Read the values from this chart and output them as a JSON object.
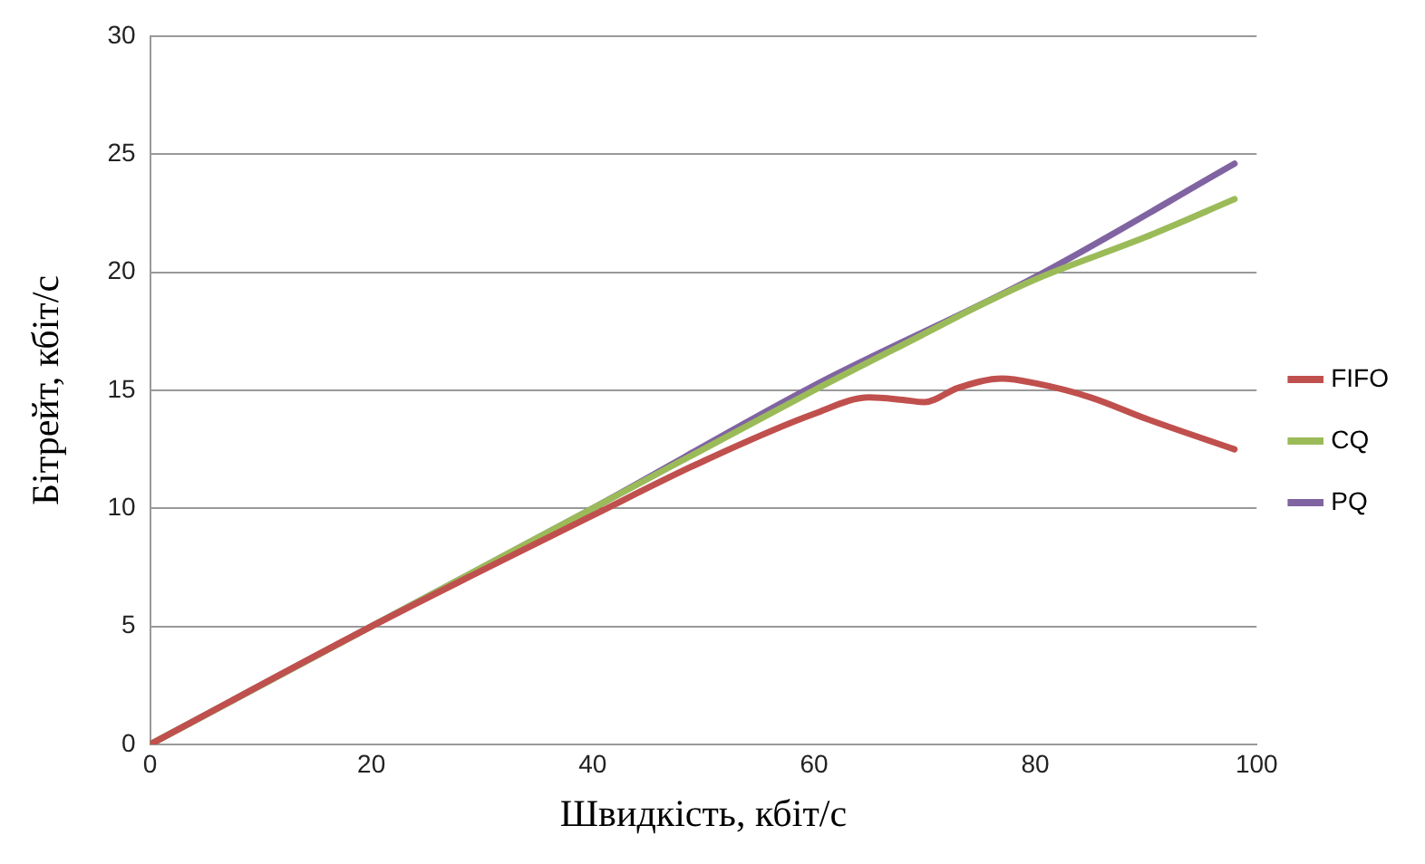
{
  "chart_data": {
    "type": "line",
    "xlabel": "Швидкість, кбіт/с",
    "ylabel": "Бітрейт, кбіт/с",
    "xlim": [
      0,
      100
    ],
    "xticks": [
      0,
      20,
      40,
      60,
      80,
      100
    ],
    "ylim": [
      0,
      30
    ],
    "yticks": [
      0,
      5,
      10,
      15,
      20,
      25,
      30
    ],
    "grid": "y",
    "legend": "right",
    "marker": "none",
    "line_style": "solid",
    "series": [
      {
        "name": "FIFO",
        "color": "#c0504d",
        "x": [
          0,
          20,
          40,
          50,
          60,
          65,
          68,
          70,
          73,
          77,
          80,
          85,
          90,
          98
        ],
        "values": [
          0,
          5,
          9.7,
          12,
          14,
          14.7,
          14.6,
          14.5,
          15.1,
          15.5,
          15.3,
          14.7,
          13.8,
          12.5
        ]
      },
      {
        "name": "CQ",
        "color": "#9bbb59",
        "x": [
          0,
          20,
          40,
          60,
          70,
          75,
          80,
          90,
          98
        ],
        "values": [
          0,
          5,
          10,
          15,
          17.4,
          18.6,
          19.7,
          21.5,
          23.1
        ]
      },
      {
        "name": "PQ",
        "color": "#8064a2",
        "x": [
          0,
          20,
          40,
          60,
          80,
          98
        ],
        "values": [
          0,
          5,
          10,
          15.2,
          19.8,
          24.6
        ]
      }
    ]
  }
}
